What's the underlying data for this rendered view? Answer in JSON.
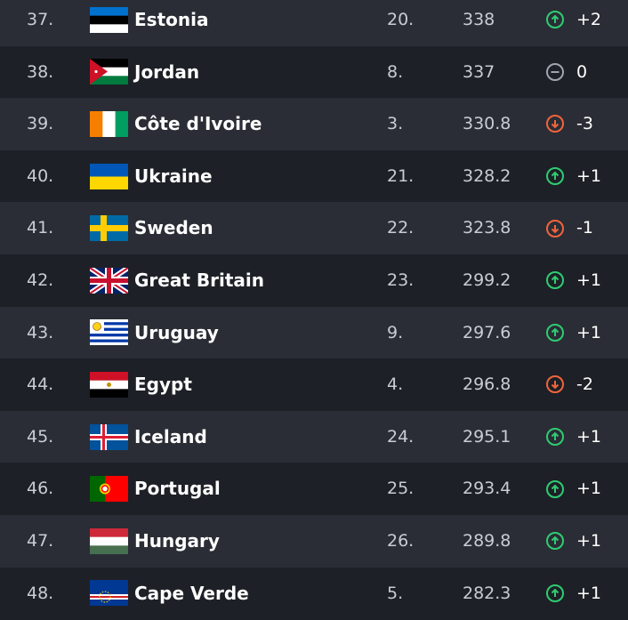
{
  "table": {
    "rows": [
      {
        "rank": "37.",
        "country": "Estonia",
        "regional_rank": "20.",
        "points": "338",
        "change": "+2"
      },
      {
        "rank": "38.",
        "country": "Jordan",
        "regional_rank": "8.",
        "points": "337",
        "change": "0"
      },
      {
        "rank": "39.",
        "country": "Côte d'Ivoire",
        "regional_rank": "3.",
        "points": "330.8",
        "change": "-3"
      },
      {
        "rank": "40.",
        "country": "Ukraine",
        "regional_rank": "21.",
        "points": "328.2",
        "change": "+1"
      },
      {
        "rank": "41.",
        "country": "Sweden",
        "regional_rank": "22.",
        "points": "323.8",
        "change": "-1"
      },
      {
        "rank": "42.",
        "country": "Great Britain",
        "regional_rank": "23.",
        "points": "299.2",
        "change": "+1"
      },
      {
        "rank": "43.",
        "country": "Uruguay",
        "regional_rank": "9.",
        "points": "297.6",
        "change": "+1"
      },
      {
        "rank": "44.",
        "country": "Egypt",
        "regional_rank": "4.",
        "points": "296.8",
        "change": "-2"
      },
      {
        "rank": "45.",
        "country": "Iceland",
        "regional_rank": "24.",
        "points": "295.1",
        "change": "+1"
      },
      {
        "rank": "46.",
        "country": "Portugal",
        "regional_rank": "25.",
        "points": "293.4",
        "change": "+1"
      },
      {
        "rank": "47.",
        "country": "Hungary",
        "regional_rank": "26.",
        "points": "289.8",
        "change": "+1"
      },
      {
        "rank": "48.",
        "country": "Cape Verde",
        "regional_rank": "5.",
        "points": "282.3",
        "change": "+1"
      }
    ]
  }
}
